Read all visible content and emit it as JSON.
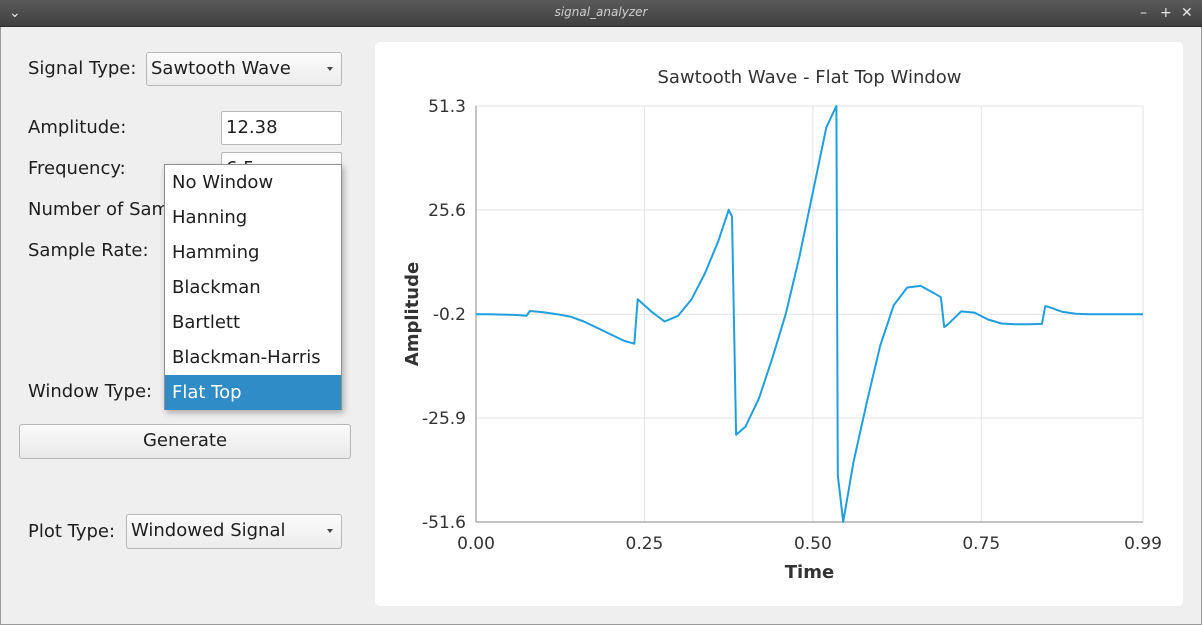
{
  "window": {
    "title": "signal_analyzer",
    "menu_icon": "chevron-down-icon",
    "controls": [
      "minimize-icon",
      "maximize-icon",
      "close-icon"
    ]
  },
  "controls": {
    "signal_type_label": "Signal Type:",
    "signal_type_value": "Sawtooth Wave",
    "amplitude_label": "Amplitude:",
    "amplitude_value": "12.38",
    "frequency_label": "Frequency:",
    "frequency_value": "6.5",
    "samples_label": "Number of Samples:",
    "sample_rate_label": "Sample Rate:",
    "window_type_label": "Window Type:",
    "generate_label": "Generate",
    "plot_type_label": "Plot Type:",
    "plot_type_value": "Windowed Signal"
  },
  "window_type_dropdown": {
    "options": [
      "No Window",
      "Hanning",
      "Hamming",
      "Blackman",
      "Bartlett",
      "Blackman-Harris",
      "Flat Top"
    ],
    "selected": "Flat Top"
  },
  "colors": {
    "series": "#209fdf",
    "selection": "#308cc6"
  },
  "chart_data": {
    "type": "line",
    "title": "Sawtooth Wave - Flat Top Window",
    "xlabel": "Time",
    "ylabel": "Amplitude",
    "xlim": [
      0.0,
      0.99
    ],
    "ylim": [
      -51.6,
      51.3
    ],
    "x_ticks": [
      "0.00",
      "0.25",
      "0.50",
      "0.75",
      "0.99"
    ],
    "y_ticks": [
      "51.3",
      "25.6",
      "-0.2",
      "-25.9",
      "-51.6"
    ],
    "grid": true,
    "legend": "none",
    "series": [
      {
        "x": [
          0.0,
          0.02,
          0.04,
          0.06,
          0.075,
          0.08,
          0.1,
          0.12,
          0.14,
          0.16,
          0.18,
          0.2,
          0.22,
          0.235,
          0.24,
          0.26,
          0.28,
          0.3,
          0.32,
          0.34,
          0.36,
          0.375,
          0.38,
          0.386,
          0.4,
          0.42,
          0.44,
          0.46,
          0.48,
          0.5,
          0.52,
          0.535,
          0.537,
          0.545,
          0.56,
          0.58,
          0.6,
          0.62,
          0.64,
          0.66,
          0.68,
          0.69,
          0.695,
          0.7,
          0.72,
          0.74,
          0.76,
          0.78,
          0.8,
          0.82,
          0.84,
          0.845,
          0.85,
          0.87,
          0.89,
          0.91,
          0.93,
          0.95,
          0.97,
          0.99
        ],
        "y": [
          -0.2,
          -0.2,
          -0.3,
          -0.4,
          -0.6,
          0.6,
          0.3,
          -0.2,
          -0.8,
          -2.0,
          -3.6,
          -5.2,
          -6.8,
          -7.5,
          3.5,
          0.5,
          -2.0,
          -0.6,
          3.5,
          10.0,
          18.0,
          25.6,
          24.0,
          -30.0,
          -28.0,
          -21.0,
          -11.0,
          0.0,
          14.0,
          30.0,
          46.0,
          51.3,
          -40.0,
          -51.6,
          -37.0,
          -22.0,
          -8.0,
          2.0,
          6.4,
          6.8,
          5.0,
          4.0,
          -3.4,
          -2.8,
          0.5,
          0.2,
          -1.5,
          -2.5,
          -2.7,
          -2.7,
          -2.6,
          1.8,
          1.6,
          0.4,
          -0.1,
          -0.2,
          -0.2,
          -0.2,
          -0.2,
          -0.2
        ]
      }
    ]
  }
}
